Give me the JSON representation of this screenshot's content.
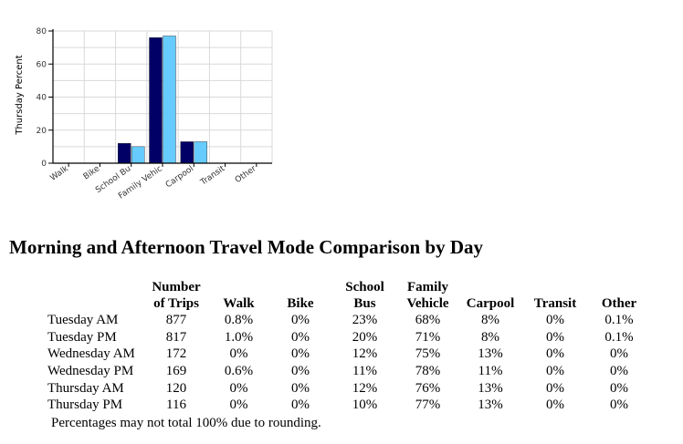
{
  "chart_data": {
    "type": "bar",
    "ylabel": "Thursday Percent",
    "ylim": [
      0,
      80
    ],
    "yticks": [
      0,
      20,
      40,
      60,
      80
    ],
    "categories": [
      "Walk",
      "Bike",
      "School Bus",
      "Family Vehicle",
      "Carpool",
      "Transit",
      "Other"
    ],
    "category_labels_visible": [
      "Walk",
      "Bike",
      "School Bu",
      "Family Vehic",
      "Carpool",
      "Transit",
      "Other"
    ],
    "series": [
      {
        "name": "Thursday AM",
        "color": "#000066",
        "values": [
          0,
          0,
          12,
          76,
          13,
          0,
          0
        ]
      },
      {
        "name": "Thursday PM",
        "color": "#66ccff",
        "values": [
          0,
          0,
          10,
          77,
          13,
          0,
          0
        ]
      }
    ],
    "grid": true
  },
  "heading": "Morning and Afternoon Travel Mode Comparison by Day",
  "table": {
    "header_top": [
      "Number",
      "",
      "",
      "School",
      "Family",
      "",
      "",
      ""
    ],
    "header_bottom": [
      "of Trips",
      "Walk",
      "Bike",
      "Bus",
      "Vehicle",
      "Carpool",
      "Transit",
      "Other"
    ],
    "rows": [
      {
        "label": "Tuesday AM",
        "cells": [
          "877",
          "0.8%",
          "0%",
          "23%",
          "68%",
          "8%",
          "0%",
          "0.1%"
        ]
      },
      {
        "label": "Tuesday PM",
        "cells": [
          "817",
          "1.0%",
          "0%",
          "20%",
          "71%",
          "8%",
          "0%",
          "0.1%"
        ]
      },
      {
        "label": "Wednesday AM",
        "cells": [
          "172",
          "0%",
          "0%",
          "12%",
          "75%",
          "13%",
          "0%",
          "0%"
        ]
      },
      {
        "label": "Wednesday PM",
        "cells": [
          "169",
          "0.6%",
          "0%",
          "11%",
          "78%",
          "11%",
          "0%",
          "0%"
        ]
      },
      {
        "label": "Thursday AM",
        "cells": [
          "120",
          "0%",
          "0%",
          "12%",
          "76%",
          "13%",
          "0%",
          "0%"
        ]
      },
      {
        "label": "Thursday PM",
        "cells": [
          "116",
          "0%",
          "0%",
          "10%",
          "77%",
          "13%",
          "0%",
          "0%"
        ]
      }
    ]
  },
  "footnote": "Percentages may not total 100% due to rounding."
}
